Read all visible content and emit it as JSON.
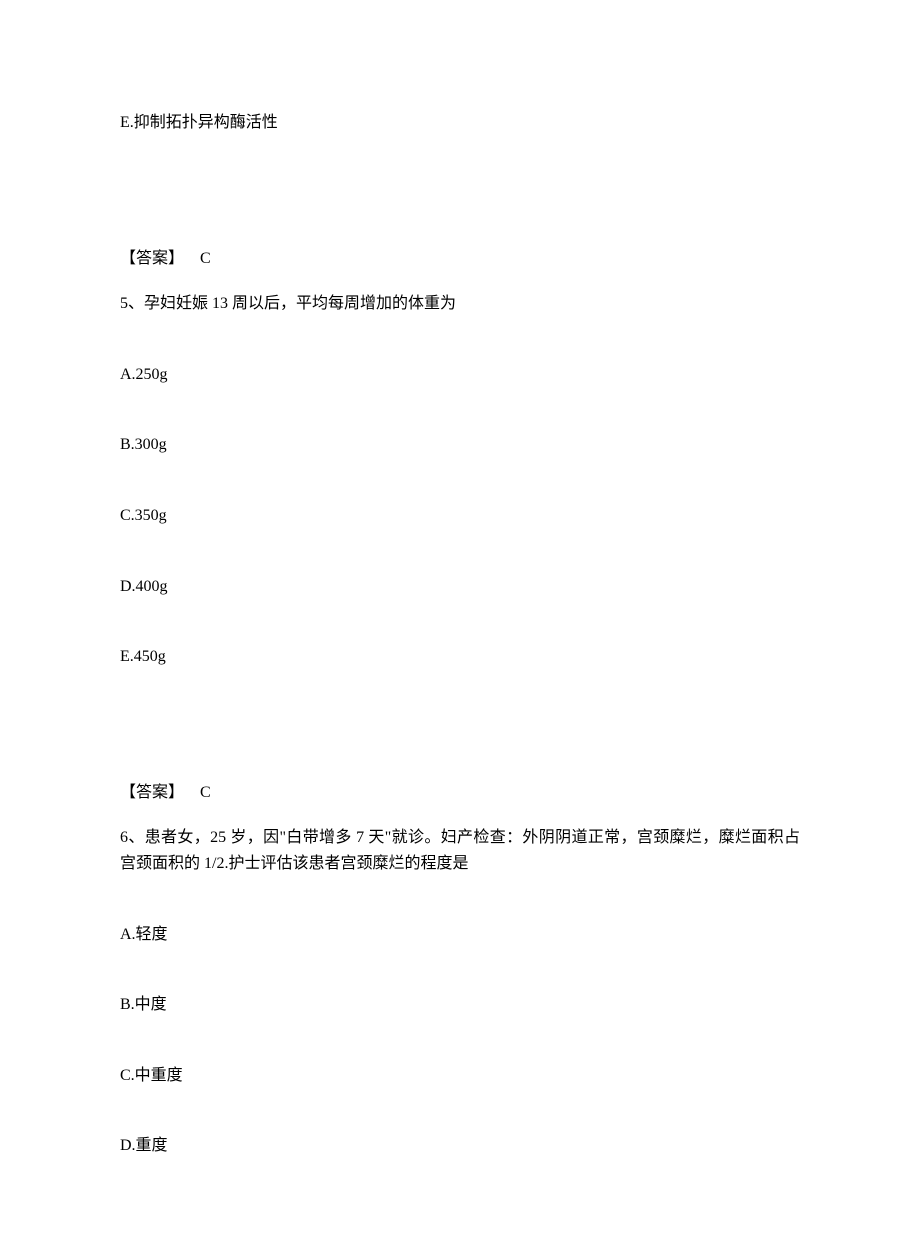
{
  "page": {
    "text_color": "#000000",
    "background_color": "#ffffff",
    "font_family": "SimSun",
    "font_size": 16
  },
  "block1": {
    "option_e": "E.抑制拓扑异构酶活性",
    "answer_label": "【答案】",
    "answer_value": "C"
  },
  "question5": {
    "stem": "5、孕妇妊娠 13 周以后，平均每周增加的体重为",
    "options": {
      "a": "A.250g",
      "b": "B.300g",
      "c": "C.350g",
      "d": "D.400g",
      "e": "E.450g"
    },
    "answer_label": "【答案】",
    "answer_value": "C"
  },
  "question6": {
    "stem": "6、患者女，25 岁，因\"白带增多 7 天\"就诊。妇产检查：外阴阴道正常，宫颈糜烂，糜烂面积占宫颈面积的 1/2.护士评估该患者宫颈糜烂的程度是",
    "options": {
      "a": "A.轻度",
      "b": "B.中度",
      "c": "C.中重度",
      "d": "D.重度"
    }
  }
}
